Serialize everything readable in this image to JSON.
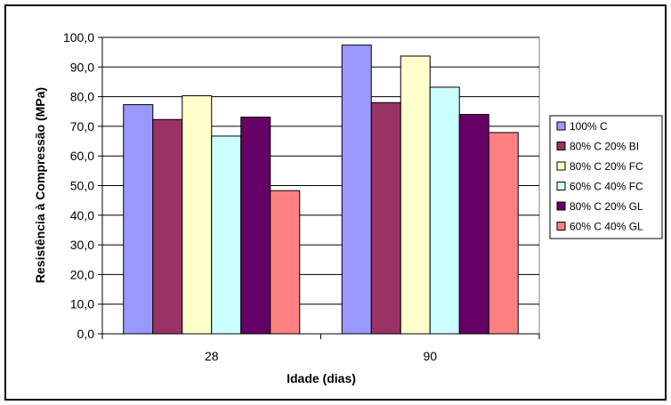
{
  "chart_data": {
    "type": "bar",
    "categories": [
      "28",
      "90"
    ],
    "series": [
      {
        "name": "100% C",
        "values": [
          77.3,
          97.4
        ],
        "color": "#9999ff"
      },
      {
        "name": "80% C 20% BI",
        "values": [
          72.3,
          78.0
        ],
        "color": "#993366"
      },
      {
        "name": "80% C 20% FC",
        "values": [
          80.3,
          93.7
        ],
        "color": "#ffffcc"
      },
      {
        "name": "60% C 40% FC",
        "values": [
          66.7,
          83.2
        ],
        "color": "#ccffff"
      },
      {
        "name": "80% C 20% GL",
        "values": [
          73.1,
          74.0
        ],
        "color": "#660066"
      },
      {
        "name": "60% C 40% GL",
        "values": [
          48.3,
          67.9
        ],
        "color": "#ff8080"
      }
    ],
    "xlabel": "Idade (dias)",
    "ylabel": "Resistência à Compressão (MPa)",
    "ylim": [
      0,
      100
    ],
    "ytick_step": 10,
    "ytick_labels": [
      "0,0",
      "10,0",
      "20,0",
      "30,0",
      "40,0",
      "50,0",
      "60,0",
      "70,0",
      "80,0",
      "90,0",
      "100,0"
    ],
    "grid": "horizontal",
    "legend_position": "right",
    "colors": {
      "plot_background": "#ffffff",
      "gridline": "#000000",
      "frame": "#000000",
      "bar_outline": "#000000"
    }
  }
}
